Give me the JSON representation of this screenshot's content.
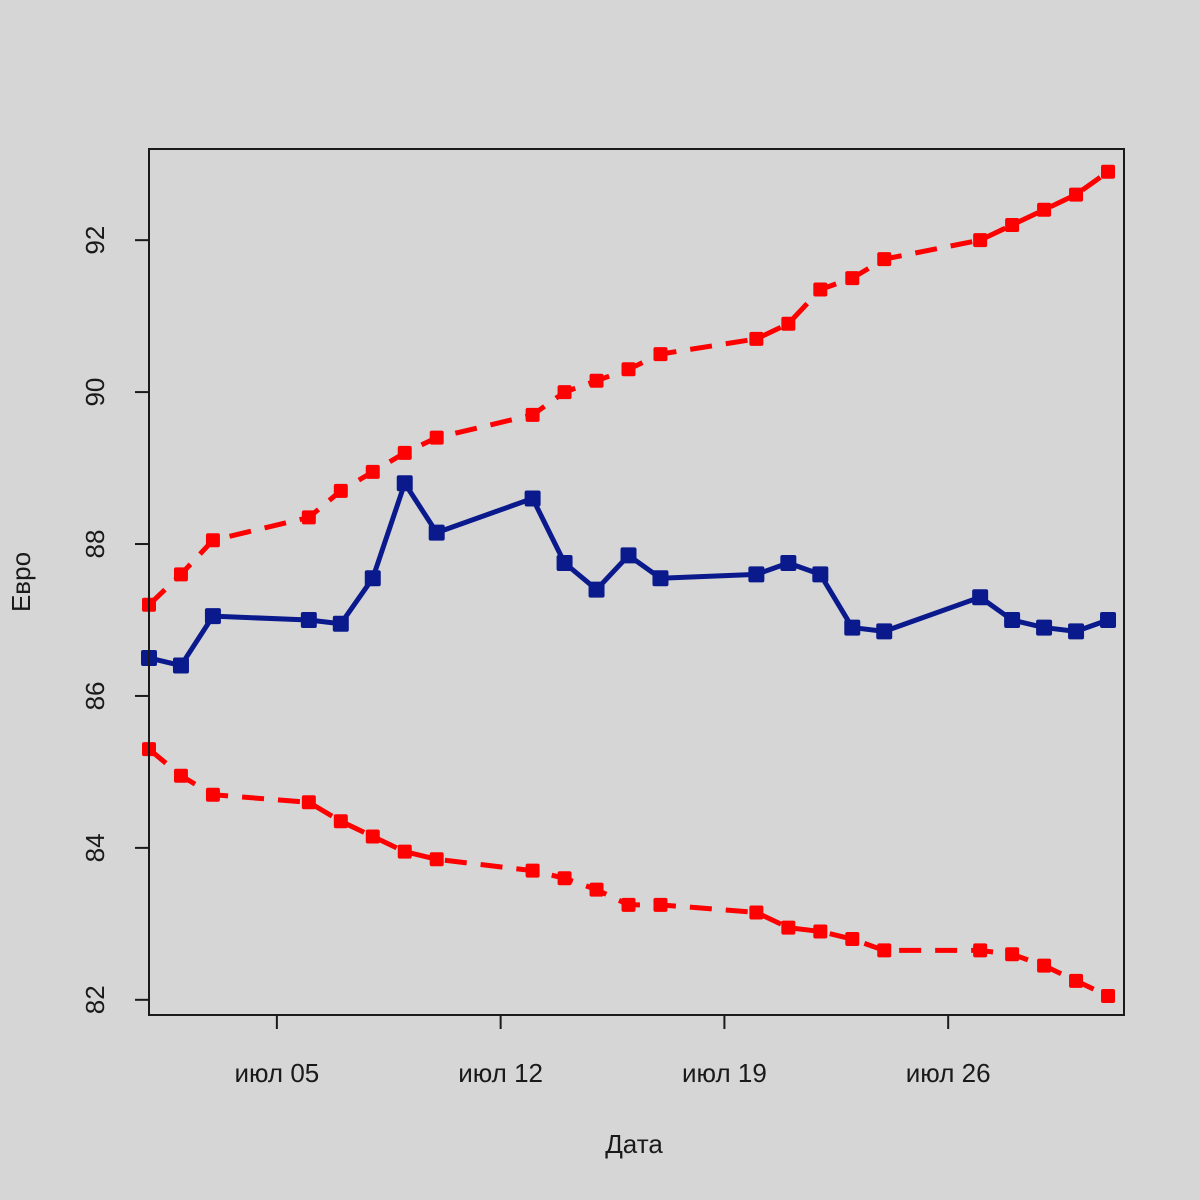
{
  "chart_data": {
    "type": "line",
    "title": "",
    "xlabel": "Дата",
    "ylabel": "Евро",
    "xlim": [
      1,
      31.5
    ],
    "ylim": [
      81.8,
      93.2
    ],
    "grid": false,
    "y_ticks": [
      82,
      84,
      86,
      88,
      90,
      92
    ],
    "x_ticks": [
      {
        "day": 5,
        "label": "июл 05"
      },
      {
        "day": 12,
        "label": "июл 12"
      },
      {
        "day": 19,
        "label": "июл 19"
      },
      {
        "day": 26,
        "label": "июл 26"
      }
    ],
    "series": [
      {
        "name": "upper",
        "color": "#ff0000",
        "style": "dashed",
        "x": [
          1,
          2,
          3,
          6,
          7,
          8,
          9,
          10,
          13,
          14,
          15,
          16,
          17,
          20,
          21,
          22,
          23,
          24,
          27,
          28,
          29,
          30,
          31
        ],
        "values": [
          87.2,
          87.6,
          88.05,
          88.35,
          88.7,
          88.95,
          89.2,
          89.4,
          89.7,
          90.0,
          90.15,
          90.3,
          90.5,
          90.7,
          90.9,
          91.35,
          91.5,
          91.75,
          92.0,
          92.2,
          92.4,
          92.6,
          92.9
        ]
      },
      {
        "name": "lower",
        "color": "#ff0000",
        "style": "dashed",
        "x": [
          1,
          2,
          3,
          6,
          7,
          8,
          9,
          10,
          13,
          14,
          15,
          16,
          17,
          20,
          21,
          22,
          23,
          24,
          27,
          28,
          29,
          30,
          31
        ],
        "values": [
          85.3,
          84.95,
          84.7,
          84.6,
          84.35,
          84.15,
          83.95,
          83.85,
          83.7,
          83.6,
          83.45,
          83.25,
          83.25,
          83.15,
          82.95,
          82.9,
          82.8,
          82.65,
          82.65,
          82.6,
          82.45,
          82.25,
          82.05
        ]
      },
      {
        "name": "actual",
        "color": "#0a1a8c",
        "style": "solid",
        "x": [
          1,
          2,
          3,
          6,
          7,
          8,
          9,
          10,
          13,
          14,
          15,
          16,
          17,
          20,
          21,
          22,
          23,
          24,
          27,
          28,
          29,
          30,
          31
        ],
        "values": [
          86.5,
          86.4,
          87.05,
          87.0,
          86.95,
          87.55,
          88.8,
          88.15,
          88.6,
          87.75,
          87.4,
          87.85,
          87.55,
          87.6,
          87.75,
          87.6,
          86.9,
          86.85,
          87.3,
          87.0,
          86.9,
          86.85,
          87.0
        ]
      }
    ]
  }
}
